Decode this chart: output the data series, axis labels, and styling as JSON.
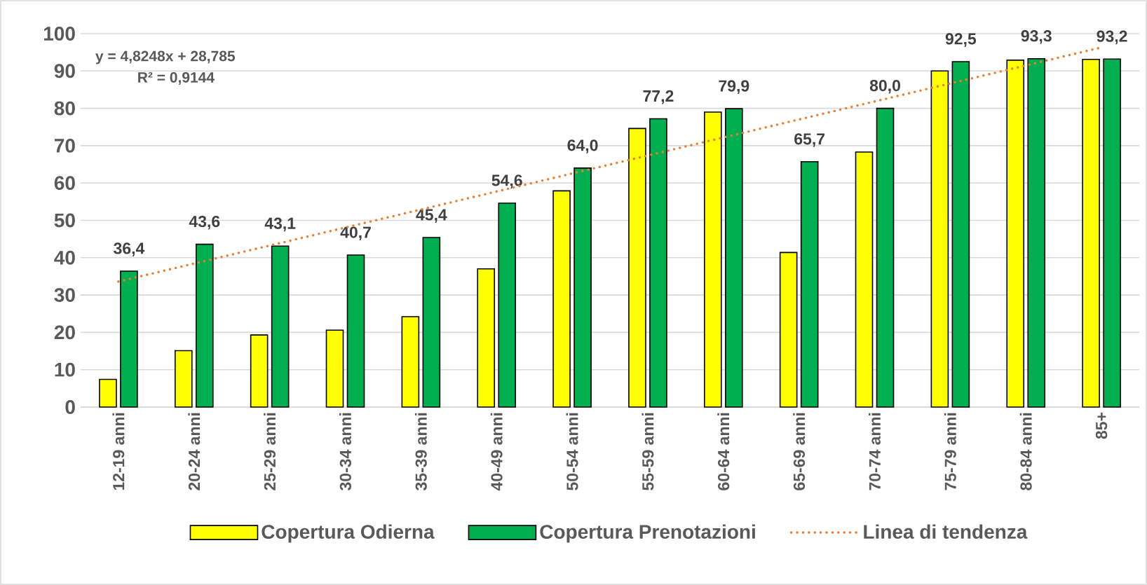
{
  "chart_data": {
    "type": "bar",
    "categories": [
      "12-19 anni",
      "20-24 anni",
      "25-29 anni",
      "30-34 anni",
      "35-39 anni",
      "40-49 anni",
      "50-54 anni",
      "55-59 anni",
      "60-64 anni",
      "65-69 anni",
      "70-74 anni",
      "75-79 anni",
      "80-84 anni",
      "85+"
    ],
    "series": [
      {
        "name": "Copertura Odierna",
        "color": "#ffff00",
        "values": [
          7.4,
          15.1,
          19.3,
          20.6,
          24.2,
          37.0,
          57.9,
          74.6,
          79.0,
          41.4,
          68.3,
          90.0,
          92.9,
          93.1
        ]
      },
      {
        "name": "Copertura Prenotazioni",
        "color": "#00b050",
        "values": [
          36.4,
          43.6,
          43.1,
          40.7,
          45.4,
          54.6,
          64.0,
          77.2,
          79.9,
          65.7,
          80.0,
          92.5,
          93.3,
          93.2
        ],
        "value_labels": [
          "36,4",
          "43,6",
          "43,1",
          "40,7",
          "45,4",
          "54,6",
          "64,0",
          "77,2",
          "79,9",
          "65,7",
          "80,0",
          "92,5",
          "93,3",
          "93,2"
        ]
      },
      {
        "name": "Linea di tendenza",
        "type": "line",
        "color": "#ed7d31",
        "line_style": "dotted",
        "x": [
          "12-19 anni",
          "85+"
        ],
        "values": [
          33.6,
          96.3
        ]
      }
    ],
    "ylim": [
      0,
      100
    ],
    "yticks": [
      0,
      10,
      20,
      30,
      40,
      50,
      60,
      70,
      80,
      90,
      100
    ],
    "grid": "y",
    "legend": "bottom",
    "annotations": [
      "y = 4,8248x + 28,785",
      "R² = 0,9144"
    ]
  }
}
